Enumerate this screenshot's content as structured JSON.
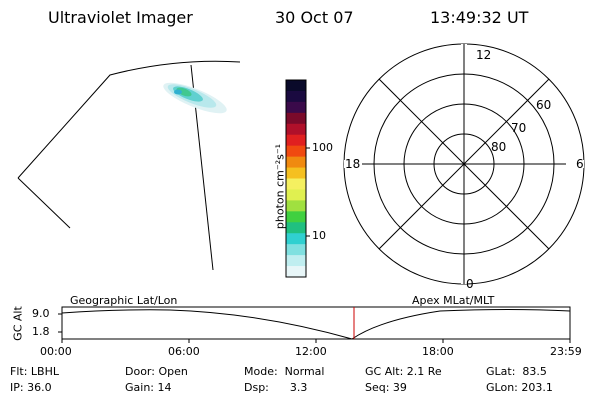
{
  "header": {
    "instrument": "Ultraviolet Imager",
    "date": "30 Oct 07",
    "time": "13:49:32 UT"
  },
  "colorbar": {
    "unit_label": "photon cm⁻²s⁻¹",
    "tick_labels": [
      "100",
      "10"
    ],
    "colors": [
      "#0a0a2a",
      "#1a0a40",
      "#3a0a4a",
      "#7a0a2a",
      "#b0102a",
      "#e02020",
      "#f04a10",
      "#f08a10",
      "#f5c020",
      "#f5f060",
      "#e0f050",
      "#a0e040",
      "#40d040",
      "#20c080",
      "#30d0d0",
      "#80e0e0",
      "#c0eef0",
      "#e8f6f8"
    ]
  },
  "polar": {
    "mlt_labels": [
      "12",
      "18",
      "6",
      "0"
    ],
    "lat_labels": [
      "60",
      "70",
      "80"
    ]
  },
  "timeline": {
    "axis_label": "GC Alt",
    "y_ticks": [
      "9.0",
      "1.8"
    ],
    "left_caption": "Geographic Lat/Lon",
    "right_caption": "Apex MLat/MLT",
    "x_ticks": [
      "00:00",
      "06:00",
      "12:00",
      "18:00",
      "23:59"
    ],
    "marker_color": "#cc0000"
  },
  "info": {
    "row1": [
      "Flt: LBHL",
      "Door: Open",
      "Mode:  Normal",
      "GC Alt: 2.1 Re",
      "GLat:  83.5"
    ],
    "row2": [
      "IP: 36.0",
      "Gain: 14",
      "Dsp:      3.3",
      "Seq: 39",
      "GLon: 203.1"
    ]
  }
}
